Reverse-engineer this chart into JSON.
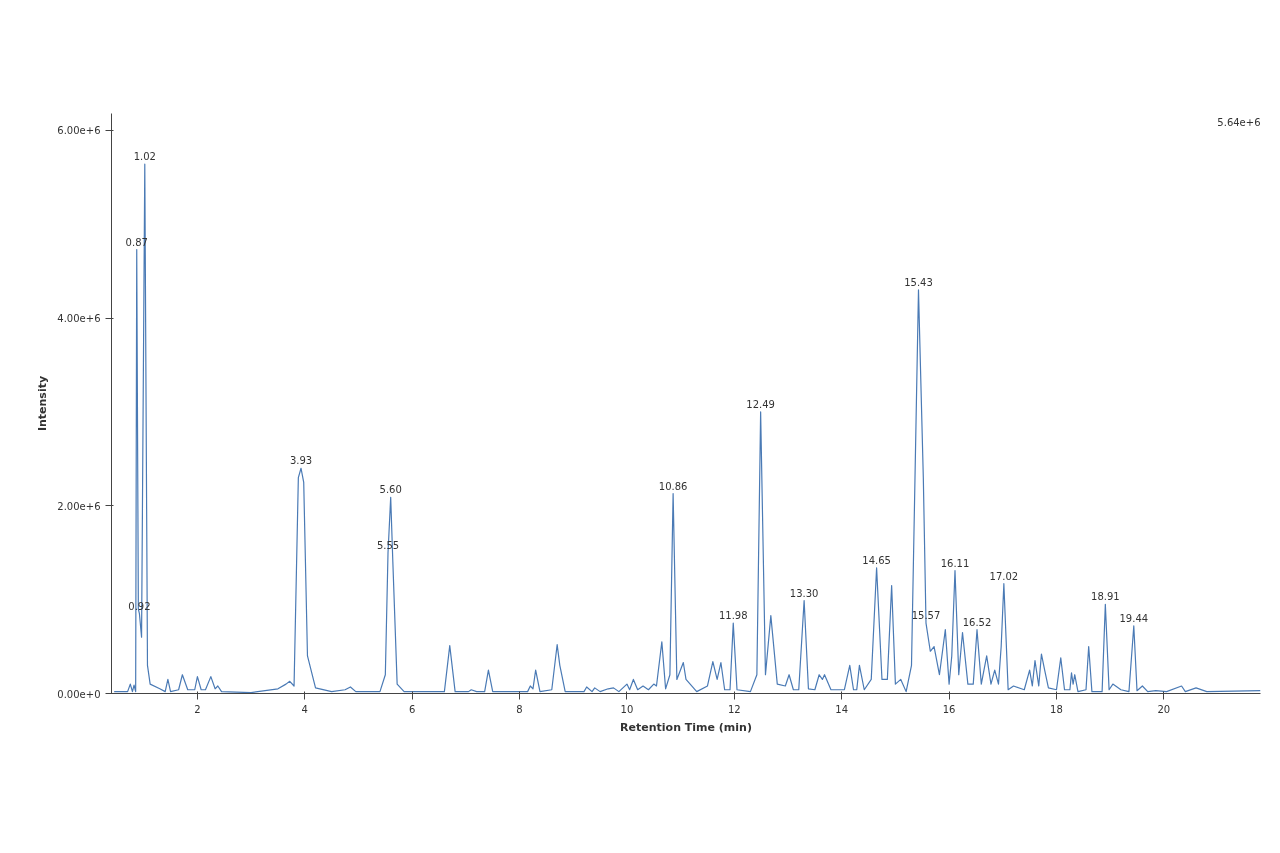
{
  "chart_data": {
    "type": "line",
    "xlabel": "Retention Time (min)",
    "ylabel": "Intensity",
    "xlim": [
      0.4,
      21.8
    ],
    "ylim": [
      0,
      6180000
    ],
    "xticks": [
      2,
      4,
      6,
      8,
      10,
      12,
      14,
      16,
      18,
      20
    ],
    "yticks": [
      {
        "value": 0,
        "label": "0.00e+0"
      },
      {
        "value": 2000000,
        "label": "2.00e+6"
      },
      {
        "value": 4000000,
        "label": "4.00e+6"
      },
      {
        "value": 6000000,
        "label": "6.00e+6"
      }
    ],
    "grid": false,
    "marker": "none",
    "line_style": "solid",
    "series": [
      {
        "color": "#4a7ab5",
        "x": [
          0.45,
          0.7,
          0.75,
          0.79,
          0.82,
          0.85,
          0.87,
          0.9,
          0.92,
          0.96,
          1.02,
          1.07,
          1.12,
          1.3,
          1.4,
          1.45,
          1.5,
          1.65,
          1.72,
          1.82,
          1.95,
          2.0,
          2.07,
          2.15,
          2.25,
          2.33,
          2.38,
          2.45,
          3.0,
          3.5,
          3.65,
          3.72,
          3.8,
          3.88,
          3.93,
          3.98,
          4.05,
          4.2,
          4.5,
          4.75,
          4.85,
          4.95,
          5.4,
          5.5,
          5.55,
          5.6,
          5.64,
          5.72,
          5.85,
          6.6,
          6.7,
          6.8,
          7.05,
          7.1,
          7.2,
          7.35,
          7.42,
          7.5,
          8.15,
          8.2,
          8.25,
          8.3,
          8.38,
          8.6,
          8.7,
          8.75,
          8.85,
          9.2,
          9.25,
          9.35,
          9.4,
          9.5,
          9.65,
          9.75,
          9.85,
          10.0,
          10.05,
          10.12,
          10.2,
          10.3,
          10.4,
          10.5,
          10.55,
          10.65,
          10.72,
          10.8,
          10.86,
          10.93,
          11.05,
          11.1,
          11.3,
          11.5,
          11.6,
          11.68,
          11.75,
          11.82,
          11.92,
          11.98,
          12.05,
          12.3,
          12.42,
          12.49,
          12.58,
          12.68,
          12.8,
          12.95,
          13.02,
          13.1,
          13.2,
          13.3,
          13.38,
          13.5,
          13.58,
          13.64,
          13.68,
          13.8,
          14.05,
          14.15,
          14.22,
          14.28,
          14.33,
          14.42,
          14.55,
          14.65,
          14.75,
          14.85,
          14.93,
          15.0,
          15.1,
          15.2,
          15.3,
          15.43,
          15.52,
          15.57,
          15.65,
          15.72,
          15.82,
          15.93,
          16.0,
          16.05,
          16.11,
          16.18,
          16.25,
          16.35,
          16.45,
          16.52,
          16.6,
          16.7,
          16.78,
          16.85,
          16.92,
          16.97,
          17.02,
          17.1,
          17.2,
          17.4,
          17.5,
          17.55,
          17.6,
          17.67,
          17.72,
          17.78,
          17.85,
          18.0,
          18.08,
          18.15,
          18.25,
          18.28,
          18.31,
          18.34,
          18.4,
          18.55,
          18.6,
          18.66,
          18.85,
          18.91,
          18.98,
          19.05,
          19.2,
          19.35,
          19.44,
          19.5,
          19.6,
          19.7,
          19.85,
          20.05,
          20.33,
          20.4,
          20.6,
          20.8,
          21.8
        ],
        "values": [
          20000,
          20000,
          100000,
          20000,
          90000,
          20000,
          4730000,
          900000,
          850000,
          600000,
          5640000,
          300000,
          100000,
          50000,
          20000,
          150000,
          20000,
          40000,
          200000,
          40000,
          40000,
          180000,
          40000,
          40000,
          180000,
          50000,
          80000,
          20000,
          10000,
          50000,
          100000,
          130000,
          80000,
          2300000,
          2400000,
          2250000,
          400000,
          60000,
          20000,
          40000,
          70000,
          20000,
          20000,
          200000,
          1500000,
          2090000,
          1400000,
          100000,
          20000,
          20000,
          510000,
          20000,
          20000,
          40000,
          20000,
          20000,
          250000,
          20000,
          20000,
          80000,
          50000,
          250000,
          20000,
          40000,
          520000,
          300000,
          20000,
          20000,
          70000,
          20000,
          60000,
          20000,
          50000,
          60000,
          20000,
          100000,
          40000,
          150000,
          40000,
          80000,
          40000,
          100000,
          80000,
          550000,
          50000,
          200000,
          2130000,
          150000,
          330000,
          150000,
          20000,
          80000,
          340000,
          150000,
          330000,
          40000,
          40000,
          750000,
          40000,
          20000,
          200000,
          3000000,
          200000,
          830000,
          100000,
          80000,
          200000,
          40000,
          40000,
          990000,
          50000,
          40000,
          200000,
          150000,
          200000,
          40000,
          40000,
          300000,
          40000,
          40000,
          300000,
          40000,
          150000,
          1340000,
          150000,
          150000,
          1150000,
          100000,
          150000,
          20000,
          300000,
          4300000,
          2300000,
          750000,
          450000,
          500000,
          200000,
          680000,
          100000,
          400000,
          1310000,
          200000,
          650000,
          100000,
          100000,
          680000,
          100000,
          400000,
          100000,
          250000,
          100000,
          500000,
          1170000,
          40000,
          80000,
          40000,
          250000,
          80000,
          350000,
          80000,
          420000,
          250000,
          60000,
          40000,
          380000,
          40000,
          40000,
          220000,
          100000,
          200000,
          20000,
          40000,
          500000,
          20000,
          20000,
          950000,
          40000,
          100000,
          40000,
          20000,
          720000,
          30000,
          80000,
          20000,
          30000,
          20000,
          80000,
          20000,
          60000,
          20000,
          30000
        ]
      }
    ],
    "annotations": [
      {
        "text": "0.87",
        "x": 0.87,
        "y": 4730000
      },
      {
        "text": "0.92",
        "x": 0.92,
        "y": 850000
      },
      {
        "text": "1.02",
        "x": 1.02,
        "y": 5640000
      },
      {
        "text": "3.93",
        "x": 3.93,
        "y": 2400000
      },
      {
        "text": "5.55",
        "x": 5.55,
        "y": 1500000
      },
      {
        "text": "5.60",
        "x": 5.6,
        "y": 2090000
      },
      {
        "text": "10.86",
        "x": 10.86,
        "y": 2130000
      },
      {
        "text": "11.98",
        "x": 11.98,
        "y": 750000
      },
      {
        "text": "12.49",
        "x": 12.49,
        "y": 3000000
      },
      {
        "text": "13.30",
        "x": 13.3,
        "y": 990000
      },
      {
        "text": "14.65",
        "x": 14.65,
        "y": 1340000
      },
      {
        "text": "15.43",
        "x": 15.43,
        "y": 4300000
      },
      {
        "text": "15.57",
        "x": 15.57,
        "y": 750000
      },
      {
        "text": "16.11",
        "x": 16.11,
        "y": 1310000
      },
      {
        "text": "16.52",
        "x": 16.52,
        "y": 680000
      },
      {
        "text": "17.02",
        "x": 17.02,
        "y": 1170000
      },
      {
        "text": "18.91",
        "x": 18.91,
        "y": 950000
      },
      {
        "text": "19.44",
        "x": 19.44,
        "y": 720000
      },
      "5.64e+6"
    ]
  }
}
